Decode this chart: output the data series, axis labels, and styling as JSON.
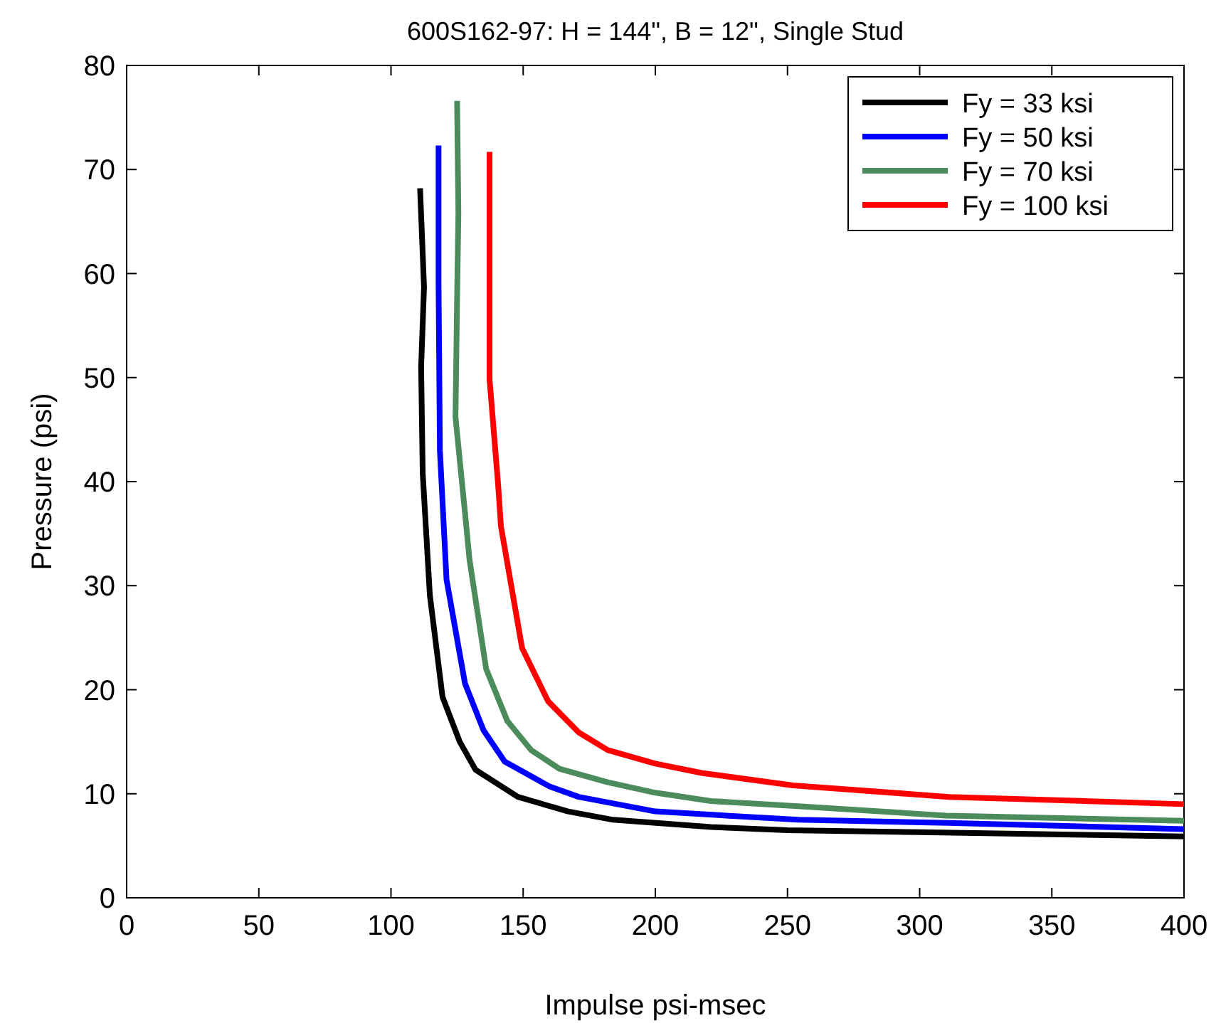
{
  "chart_data": {
    "type": "line",
    "title": "600S162-97: H = 144\", B = 12\", Single Stud",
    "xlabel": "Impulse psi-msec",
    "ylabel": "Pressure (psi)",
    "xlim": [
      0,
      400
    ],
    "ylim": [
      0,
      80
    ],
    "xticks": [
      0,
      50,
      100,
      150,
      200,
      250,
      300,
      350,
      400
    ],
    "yticks": [
      0,
      10,
      20,
      30,
      40,
      50,
      60,
      70,
      80
    ],
    "grid": false,
    "legend": "top right",
    "line_style": "solid",
    "marker": "none",
    "series": [
      {
        "name": "Fy = 33 ksi",
        "color": "#000000",
        "x": [
          111,
          112.5,
          111.4,
          112,
          114.7,
          119.5,
          126,
          132,
          148,
          167,
          184,
          221,
          250,
          300,
          350,
          400
        ],
        "values": [
          68.2,
          58.7,
          51,
          40.8,
          29.1,
          19.3,
          15,
          12.3,
          9.7,
          8.3,
          7.5,
          6.8,
          6.5,
          6.3,
          6.1,
          5.9
        ]
      },
      {
        "name": "Fy = 50 ksi",
        "color": "#0000ff",
        "x": [
          118,
          118,
          118.5,
          121,
          128,
          135,
          143,
          160,
          171,
          200,
          254,
          311,
          400
        ],
        "values": [
          72.3,
          58.9,
          43,
          30.6,
          20.6,
          16.1,
          13.1,
          10.7,
          9.7,
          8.3,
          7.5,
          7.2,
          6.6
        ]
      },
      {
        "name": "Fy = 70 ksi",
        "color": "#4c8c5c",
        "x": [
          125,
          125.5,
          125,
          124.4,
          128,
          129.7,
          136,
          144,
          153,
          163.7,
          182,
          200,
          221,
          254,
          310,
          400
        ],
        "values": [
          76.6,
          65.8,
          57.5,
          46.2,
          37,
          32.5,
          22,
          17,
          14.2,
          12.4,
          11.1,
          10.1,
          9.3,
          8.8,
          7.9,
          7.4
        ]
      },
      {
        "name": "Fy = 100 ksi",
        "color": "#ff0000",
        "x": [
          137.3,
          137.3,
          137.3,
          140.5,
          141.6,
          149.6,
          159.4,
          171,
          182,
          200,
          217.5,
          252,
          311,
          400
        ],
        "values": [
          71.7,
          60,
          49.8,
          39.8,
          35.7,
          24,
          18.9,
          15.9,
          14.2,
          12.9,
          12,
          10.8,
          9.7,
          9.0
        ]
      }
    ]
  }
}
